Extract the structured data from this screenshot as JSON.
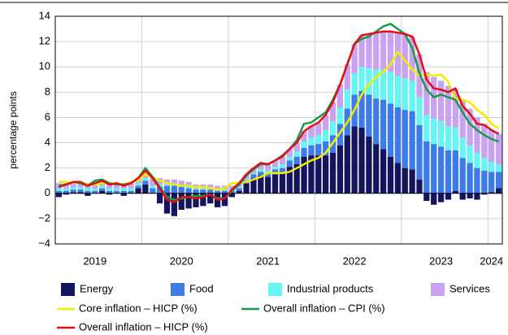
{
  "chart_data": {
    "type": "bar",
    "stacked": true,
    "y_label": "percentage points",
    "ylim": [
      -4,
      14
    ],
    "yticks": [
      {
        "value": -4,
        "label": "−4"
      },
      {
        "value": -2,
        "label": "−2"
      },
      0,
      2,
      4,
      6,
      8,
      10,
      12,
      14
    ],
    "grid": true,
    "categories": [
      null,
      null,
      null,
      null,
      null,
      "2019",
      null,
      null,
      null,
      null,
      null,
      null,
      null,
      null,
      null,
      null,
      null,
      "2020",
      null,
      null,
      null,
      null,
      null,
      null,
      null,
      null,
      null,
      null,
      null,
      "2021",
      null,
      null,
      null,
      null,
      null,
      null,
      null,
      null,
      null,
      null,
      null,
      "2022",
      null,
      null,
      null,
      null,
      null,
      null,
      null,
      null,
      null,
      null,
      null,
      "2023",
      null,
      null,
      null,
      null,
      null,
      null,
      "2024",
      null
    ],
    "series": [
      {
        "name": "Energy",
        "color": "#14145f",
        "values": [
          -0.3,
          -0.1,
          0.1,
          0.1,
          -0.2,
          0.0,
          0.2,
          -0.1,
          0.0,
          -0.2,
          0.0,
          0.4,
          0.7,
          0.0,
          -0.8,
          -1.6,
          -1.8,
          -1.3,
          -1.2,
          -1.1,
          -1.0,
          -0.8,
          -1.1,
          -1.0,
          -0.3,
          0.2,
          0.8,
          1.2,
          1.4,
          1.3,
          1.5,
          1.6,
          2.1,
          2.3,
          2.9,
          3.0,
          3.0,
          3.0,
          3.2,
          3.8,
          4.6,
          5.3,
          5.2,
          4.5,
          3.9,
          3.5,
          2.9,
          2.4,
          2.0,
          1.9,
          1.1,
          -0.6,
          -0.9,
          -0.7,
          -0.5,
          0.2,
          -0.5,
          -0.4,
          -0.5,
          -0.1,
          0.1,
          0.4
        ]
      },
      {
        "name": "Food",
        "color": "#3d7ce8",
        "values": [
          0.2,
          0.2,
          0.2,
          0.2,
          0.2,
          0.2,
          0.2,
          0.2,
          0.2,
          0.2,
          0.2,
          0.2,
          0.3,
          0.4,
          0.5,
          0.6,
          0.6,
          0.5,
          0.4,
          0.3,
          0.3,
          0.3,
          0.2,
          0.2,
          0.2,
          0.2,
          0.2,
          0.3,
          0.3,
          0.3,
          0.4,
          0.4,
          0.5,
          0.6,
          0.7,
          0.8,
          0.9,
          1.1,
          1.4,
          1.7,
          2.1,
          2.5,
          2.9,
          3.3,
          3.6,
          3.9,
          4.2,
          4.4,
          4.6,
          4.6,
          4.3,
          4.1,
          3.9,
          3.7,
          3.4,
          3.2,
          2.8,
          2.4,
          2.0,
          1.8,
          1.6,
          1.3
        ]
      },
      {
        "name": "Industrial products",
        "color": "#66f4f4",
        "values": [
          0.2,
          0.2,
          0.2,
          0.2,
          0.2,
          0.2,
          0.2,
          0.2,
          0.2,
          0.2,
          0.2,
          0.2,
          0.2,
          0.2,
          0.2,
          0.1,
          0.1,
          0.1,
          0.1,
          0.1,
          0.1,
          0.1,
          0.1,
          0.1,
          0.1,
          0.1,
          0.1,
          0.1,
          0.2,
          0.2,
          0.2,
          0.3,
          0.3,
          0.4,
          0.5,
          0.6,
          0.7,
          0.9,
          1.1,
          1.3,
          1.5,
          1.7,
          1.9,
          2.1,
          2.3,
          2.4,
          2.5,
          2.5,
          2.5,
          2.4,
          2.2,
          2.1,
          2.0,
          2.0,
          1.9,
          1.8,
          1.6,
          1.4,
          1.2,
          1.0,
          0.8,
          0.6
        ]
      },
      {
        "name": "Services",
        "color": "#caa2f2",
        "values": [
          0.4,
          0.4,
          0.4,
          0.4,
          0.4,
          0.4,
          0.4,
          0.4,
          0.4,
          0.4,
          0.4,
          0.4,
          0.6,
          0.6,
          0.5,
          0.4,
          0.4,
          0.4,
          0.4,
          0.3,
          0.3,
          0.3,
          0.3,
          0.3,
          0.3,
          0.3,
          0.4,
          0.4,
          0.5,
          0.5,
          0.5,
          0.6,
          0.6,
          0.7,
          0.8,
          0.9,
          1.0,
          1.2,
          1.5,
          1.8,
          2.0,
          2.3,
          2.5,
          2.7,
          2.9,
          3.0,
          3.2,
          3.4,
          3.5,
          3.5,
          3.4,
          3.4,
          3.3,
          3.2,
          3.2,
          3.1,
          3.0,
          2.9,
          2.8,
          2.7,
          2.5,
          2.4
        ]
      }
    ],
    "lines": [
      {
        "name": "Core inflation – HICP (%)",
        "color": "#f2ec00",
        "values": [
          0.9,
          0.9,
          0.8,
          0.9,
          0.7,
          0.7,
          0.8,
          0.8,
          0.8,
          0.7,
          0.9,
          1.0,
          1.5,
          1.3,
          1.0,
          0.8,
          0.7,
          0.6,
          0.6,
          0.5,
          0.5,
          0.4,
          0.3,
          0.4,
          0.8,
          0.8,
          0.9,
          1.1,
          1.3,
          1.6,
          1.6,
          1.6,
          1.7,
          2.0,
          2.3,
          2.6,
          2.8,
          3.2,
          4.0,
          4.8,
          5.6,
          6.6,
          7.8,
          8.6,
          9.2,
          9.6,
          10.2,
          11.2,
          10.5,
          9.8,
          9.3,
          9.4,
          9.3,
          9.4,
          8.8,
          7.5,
          7.4,
          7.2,
          6.6,
          6.2,
          5.5,
          5.1
        ]
      },
      {
        "name": "Overall inflation – CPI (%)",
        "color": "#1a9a4a",
        "values": [
          0.6,
          0.7,
          0.9,
          0.8,
          0.6,
          1.0,
          1.1,
          0.8,
          0.7,
          0.7,
          0.8,
          1.2,
          2.0,
          1.3,
          0.5,
          -0.3,
          -0.5,
          -0.4,
          -0.3,
          -0.2,
          -0.2,
          -0.1,
          -0.4,
          -0.4,
          0.2,
          0.7,
          1.4,
          1.9,
          2.3,
          2.3,
          2.6,
          3.0,
          3.5,
          4.2,
          5.5,
          5.6,
          6.0,
          6.4,
          7.4,
          8.6,
          10.2,
          11.8,
          12.2,
          12.4,
          12.8,
          13.2,
          13.4,
          13.0,
          12.6,
          11.5,
          9.5,
          8.2,
          7.6,
          7.8,
          7.6,
          7.4,
          6.4,
          5.5,
          5.0,
          4.6,
          4.3,
          4.1
        ]
      },
      {
        "name": "Overall inflation – HICP (%)",
        "color": "#e01010",
        "values": [
          0.5,
          0.7,
          0.9,
          0.9,
          0.6,
          0.8,
          1.0,
          0.7,
          0.8,
          0.6,
          0.8,
          1.2,
          1.8,
          1.2,
          0.4,
          -0.5,
          -0.7,
          -0.3,
          -0.3,
          -0.4,
          -0.3,
          -0.1,
          -0.5,
          -0.4,
          0.3,
          0.8,
          1.5,
          2.0,
          2.4,
          2.3,
          2.6,
          2.9,
          3.5,
          4.0,
          4.9,
          5.3,
          5.6,
          6.2,
          7.2,
          8.6,
          10.2,
          11.8,
          12.5,
          12.6,
          12.7,
          12.8,
          12.8,
          12.7,
          12.6,
          12.4,
          11.0,
          9.0,
          8.3,
          8.2,
          8.0,
          8.3,
          6.9,
          6.3,
          5.5,
          5.4,
          5.0,
          4.7
        ]
      }
    ]
  }
}
